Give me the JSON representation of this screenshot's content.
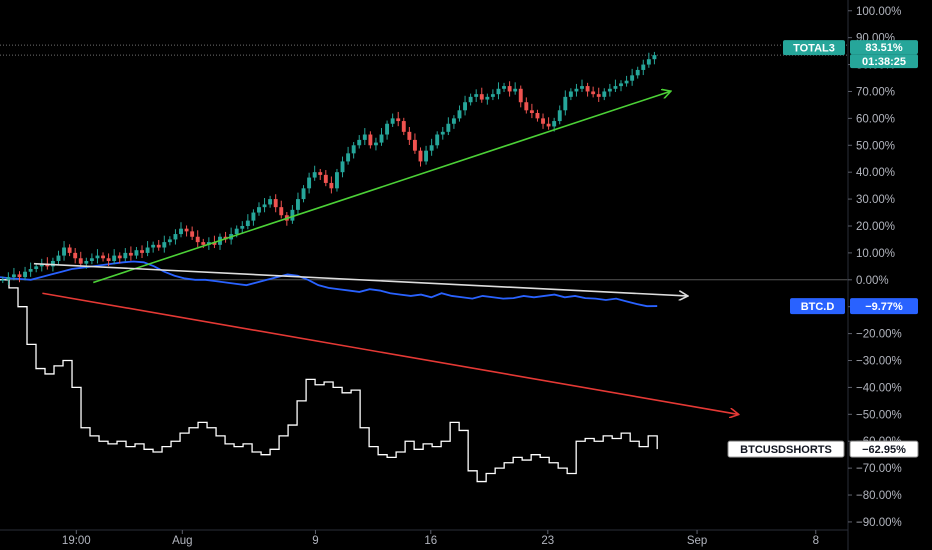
{
  "chart_data": {
    "type": "line",
    "title": "",
    "xlabel": "",
    "ylabel": "",
    "ylim": [
      -93,
      104
    ],
    "x_tick_labels": [
      "19:00",
      "Aug",
      "9",
      "16",
      "23",
      "Sep",
      "8"
    ],
    "y_tick_labels": [
      "100.00%",
      "90.00%",
      "80.00%",
      "70.00%",
      "60.00%",
      "50.00%",
      "40.00%",
      "30.00%",
      "20.00%",
      "10.00%",
      "0.00%",
      "−10.00%",
      "−20.00%",
      "−30.00%",
      "−40.00%",
      "−50.00%",
      "−60.00%",
      "−70.00%",
      "−80.00%",
      "−90.00%"
    ],
    "series": [
      {
        "name": "TOTAL3",
        "kind": "candlestick",
        "color_up": "#26a69a",
        "color_down": "#ef5350",
        "last_value_label": "83.51%",
        "countdown": "01:38:25",
        "values": [
          0,
          1,
          2,
          1,
          3,
          4,
          5,
          6,
          5,
          7,
          9,
          12,
          10,
          8,
          6,
          7,
          8,
          9,
          8,
          7,
          9,
          8,
          10,
          9,
          11,
          10,
          12,
          13,
          12,
          14,
          15,
          17,
          19,
          18,
          16,
          14,
          13,
          14,
          13,
          16,
          15,
          17,
          19,
          20,
          22,
          25,
          27,
          28,
          30,
          27,
          24,
          22,
          26,
          30,
          34,
          38,
          40,
          39,
          36,
          34,
          40,
          44,
          47,
          50,
          52,
          54,
          50,
          51,
          54,
          58,
          60,
          59,
          55,
          52,
          48,
          44,
          48,
          50,
          54,
          55,
          58,
          60,
          63,
          66,
          68,
          69,
          67,
          68,
          69,
          71,
          72,
          70,
          71,
          66,
          63,
          62,
          60,
          58,
          57,
          59,
          63,
          68,
          70,
          71,
          72,
          70,
          69,
          68,
          70,
          71,
          72,
          73,
          74,
          76,
          78,
          80,
          82,
          83.51
        ]
      },
      {
        "name": "BTC.D",
        "kind": "line",
        "color": "#2962ff",
        "last_value_label": "−9.77%",
        "values": [
          1,
          0.5,
          0.3,
          0,
          1,
          2,
          3,
          4,
          4.5,
          5,
          5.5,
          6,
          6.5,
          6.8,
          6.5,
          5,
          3,
          1.5,
          0.5,
          0,
          0,
          -0.5,
          -1,
          -1.5,
          -2,
          -1,
          0,
          1,
          2,
          1.5,
          0,
          -2,
          -3,
          -3.5,
          -4,
          -4.5,
          -3.5,
          -4,
          -5,
          -5.5,
          -6,
          -5.5,
          -6.5,
          -5,
          -6,
          -6.5,
          -7,
          -6,
          -6.5,
          -7,
          -6.8,
          -6,
          -6.5,
          -6,
          -5.5,
          -6.5,
          -6,
          -6.8,
          -7,
          -7.5,
          -7,
          -8,
          -9,
          -9.8,
          -9.77
        ]
      },
      {
        "name": "BTCUSDSHORTS",
        "kind": "step",
        "color": "#ffffff",
        "last_value_label": "−62.95%",
        "values": [
          0,
          -3,
          -10,
          -24,
          -33,
          -35,
          -32,
          -30,
          -40,
          -55,
          -58,
          -60,
          -61,
          -60,
          -62,
          -61,
          -63,
          -64,
          -62,
          -60,
          -57,
          -55,
          -53,
          -55,
          -58,
          -61,
          -62,
          -61,
          -64,
          -65,
          -63,
          -58,
          -54,
          -45,
          -37,
          -39,
          -38,
          -40,
          -42,
          -41,
          -55,
          -62,
          -65,
          -66,
          -64,
          -60,
          -63,
          -61,
          -62,
          -60,
          -53,
          -56,
          -71,
          -75,
          -72,
          -70,
          -68,
          -66,
          -67,
          -65,
          -66,
          -68,
          -70,
          -72,
          -60,
          -59,
          -60,
          -58,
          -59,
          -57,
          -60,
          -62,
          -58,
          -62.95
        ]
      }
    ],
    "annotations": [
      {
        "type": "trendline",
        "color": "#4cd137",
        "from": {
          "t": 0.11,
          "v": -1
        },
        "to": {
          "t": 0.79,
          "v": 70
        },
        "arrow": true
      },
      {
        "type": "trendline",
        "color": "#dddddd",
        "from": {
          "t": 0.04,
          "v": 6
        },
        "to": {
          "t": 0.81,
          "v": -6
        },
        "arrow": true
      },
      {
        "type": "trendline",
        "color": "#e53935",
        "from": {
          "t": 0.05,
          "v": -5
        },
        "to": {
          "t": 0.87,
          "v": -50
        },
        "arrow": true
      }
    ],
    "reference_line": {
      "value": 0,
      "color": "#555555"
    },
    "grid": false,
    "legend": "right-axis-badges"
  }
}
